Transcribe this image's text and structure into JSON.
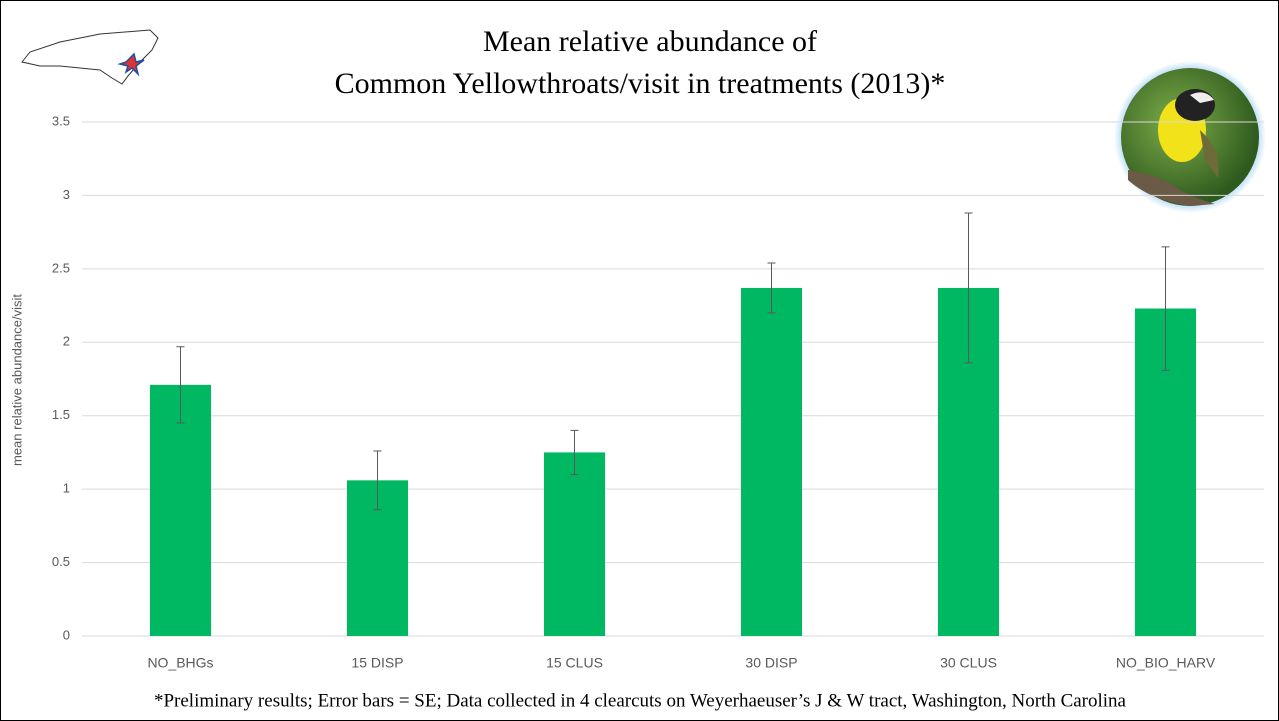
{
  "chart_data": {
    "type": "bar",
    "title": [
      "Mean relative abundance of",
      "Common Yellowthroats/visit in treatments (2013)*"
    ],
    "y_label": "mean relative abundance/visit",
    "categories": [
      "NO_BHGs",
      "15 DISP",
      "15 CLUS",
      "30 DISP",
      "30 CLUS",
      "NO_BIO_HARV"
    ],
    "values": [
      1.71,
      1.06,
      1.25,
      2.37,
      2.37,
      2.23
    ],
    "errors": [
      0.26,
      0.2,
      0.15,
      0.17,
      0.51,
      0.42
    ],
    "color": "#00b862",
    "ylim": [
      0,
      3.5
    ],
    "yticks": [
      0,
      0.5,
      1,
      1.5,
      2,
      2.5,
      3,
      3.5
    ],
    "grid": true,
    "footnote": "*Preliminary results; Error bars = SE; Data collected in 4 clearcuts on Weyerhaeuser’s J & W tract, Washington, North Carolina"
  }
}
